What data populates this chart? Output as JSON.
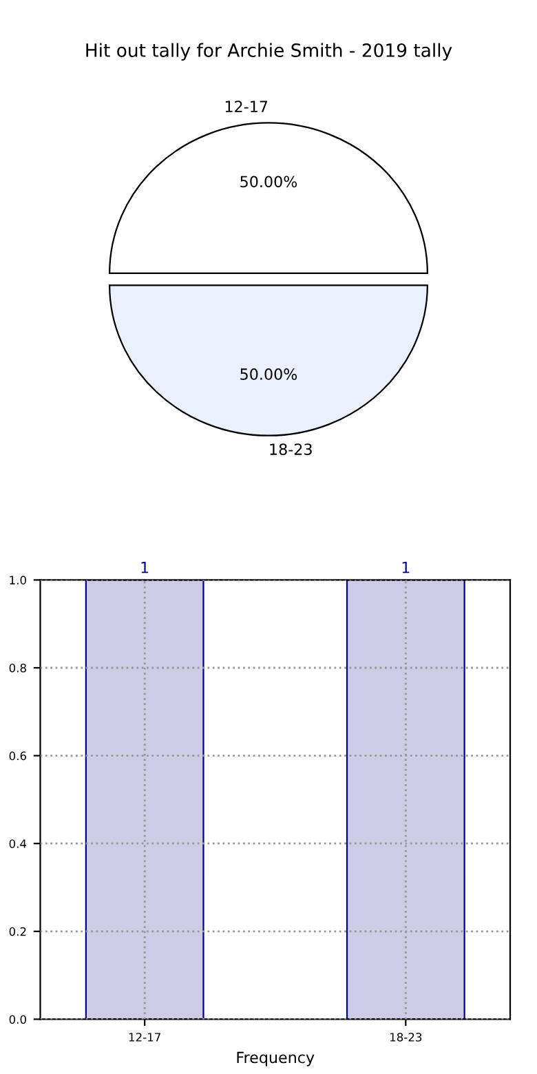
{
  "chart_data": [
    {
      "type": "pie",
      "title": "Hit out tally for Archie Smith - 2019 tally",
      "categories": [
        "12-17",
        "18-23"
      ],
      "values": [
        50,
        50
      ],
      "colors": [
        "#ffffff",
        "#eaf0fe"
      ],
      "value_labels": [
        "50.00%",
        "50.00%"
      ]
    },
    {
      "type": "bar",
      "xlabel": "Frequency",
      "categories": [
        "12-17",
        "18-23"
      ],
      "values": [
        1,
        1
      ],
      "color": "#cccce6",
      "ylim": [
        0,
        1
      ],
      "yticks": [
        {
          "value": 0,
          "label": "0.0"
        },
        {
          "value": 0.2,
          "label": "0.2"
        },
        {
          "value": 0.4,
          "label": "0.4"
        },
        {
          "value": 0.6,
          "label": "0.6"
        },
        {
          "value": 0.8,
          "label": "0.8"
        },
        {
          "value": 1,
          "label": "1.0"
        }
      ],
      "grid": true,
      "data_labels": true
    }
  ]
}
